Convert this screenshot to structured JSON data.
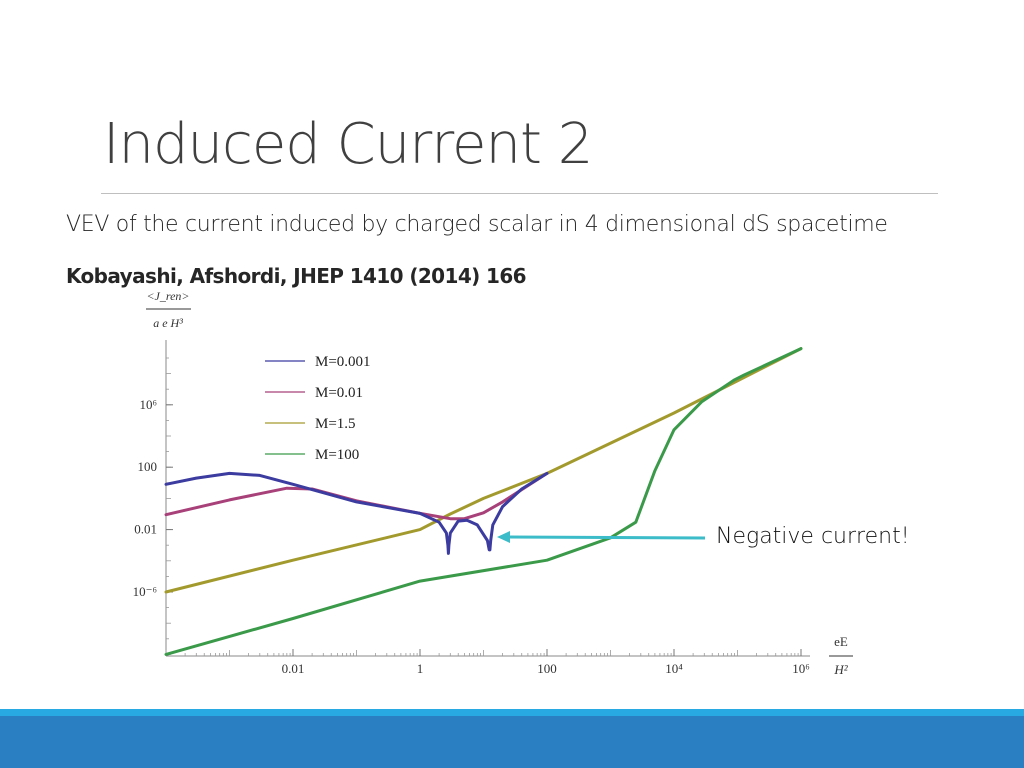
{
  "slide": {
    "title": "Induced Current 2",
    "subtitle": "VEV of the current induced by charged scalar in 4 dimensional dS spacetime",
    "reference": "Kobayashi, Afshordi, JHEP 1410 (2014) 166",
    "annotation": "Negative current!",
    "colors": {
      "strip": "#29a9e1",
      "footer": "#2a7fc2",
      "arrow": "#3bbcc8"
    }
  },
  "chart_data": {
    "type": "line",
    "xscale": "log",
    "yscale": "log",
    "xlim": [
      0.0001,
      1000000.0
    ],
    "ylim": [
      1e-10,
      10000000000.0
    ],
    "grid": false,
    "legend_position": "top-left",
    "ylabel_num": "<J_ren>",
    "ylabel_den": "a e H³",
    "xlabel_num": "eE",
    "xlabel_den": "H²",
    "x_ticks": [
      {
        "value": 0.01,
        "label": "0.01"
      },
      {
        "value": 1,
        "label": "1"
      },
      {
        "value": 100,
        "label": "100"
      },
      {
        "value": 10000.0,
        "label": "10⁴"
      },
      {
        "value": 1000000.0,
        "label": "10⁶"
      }
    ],
    "y_ticks": [
      {
        "value": 1000000.0,
        "label": "10⁶"
      },
      {
        "value": 100,
        "label": "100"
      },
      {
        "value": 0.01,
        "label": "0.01"
      },
      {
        "value": 1e-06,
        "label": "10⁻⁶"
      }
    ],
    "series": [
      {
        "name": "M=0.001",
        "color": "#3b3ba0",
        "x": [
          0.0001,
          0.0003,
          0.001,
          0.003,
          0.01,
          0.1,
          1,
          2,
          2.6,
          2.75,
          2.8,
          2.85,
          3,
          4,
          5.5,
          8,
          11.5,
          12.3,
          12.6,
          13,
          14,
          20,
          40,
          100
        ],
        "y": [
          8,
          20,
          40,
          30,
          8,
          0.6,
          0.11,
          0.03,
          0.006,
          0.001,
          0.0003,
          0.001,
          0.006,
          0.035,
          0.04,
          0.02,
          0.002,
          0.0005,
          0.0005,
          0.002,
          0.02,
          0.3,
          4,
          40
        ]
      },
      {
        "name": "M=0.01",
        "color": "#a8407a",
        "x": [
          0.0001,
          0.001,
          0.008,
          0.02,
          0.1,
          1,
          3,
          5,
          10,
          20,
          100
        ],
        "y": [
          0.09,
          0.8,
          4.5,
          4,
          0.7,
          0.11,
          0.05,
          0.05,
          0.12,
          0.6,
          40
        ]
      },
      {
        "name": "M=1.5",
        "color": "#a39a2e",
        "x": [
          0.0001,
          0.01,
          1,
          3,
          10,
          100,
          10000.0,
          1000000.0
        ],
        "y": [
          1e-06,
          0.00011,
          0.01,
          0.1,
          1,
          40,
          300000.0,
          4000000000.0
        ]
      },
      {
        "name": "M=100",
        "color": "#3a9a4a",
        "x": [
          0.0001,
          0.01,
          1,
          100,
          1000,
          2500,
          5000,
          10000.0,
          27500.0,
          90000.0,
          126000.0,
          1000000.0
        ],
        "y": [
          1e-10,
          2e-08,
          5e-06,
          0.00011,
          0.003,
          0.03,
          60,
          25000.0,
          1600000.0,
          40000000.0,
          80000000.0,
          4000000000.0
        ]
      }
    ]
  }
}
